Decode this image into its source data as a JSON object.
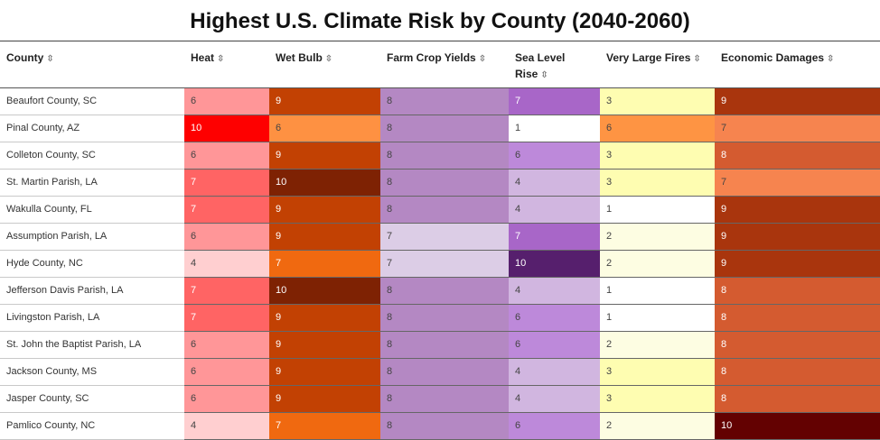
{
  "chart_data": {
    "type": "table",
    "title": "Highest U.S. Climate Risk by County (2040-2060)",
    "columns": [
      {
        "key": "county",
        "label": "County",
        "sort_icon": "sort-arrows-icon"
      },
      {
        "key": "heat",
        "label": "Heat",
        "sort_icon": "sort-arrows-icon"
      },
      {
        "key": "wetbulb",
        "label": "Wet Bulb",
        "sort_icon": "sort-arrows-icon"
      },
      {
        "key": "crops",
        "label": "Farm Crop Yields",
        "sort_icon": "sort-arrows-icon"
      },
      {
        "key": "sealevel",
        "label": "Sea Level Rise",
        "sort_icon": "sort-arrows-icon"
      },
      {
        "key": "fires",
        "label": "Very Large Fires",
        "sort_icon": "sort-arrows-icon"
      },
      {
        "key": "econ",
        "label": "Economic Damages",
        "sort_icon": "sort-arrows-icon"
      }
    ],
    "sort_glyph": "⇳",
    "rows": [
      {
        "county": "Beaufort County, SC",
        "values": [
          6,
          9,
          8,
          7,
          3,
          9
        ]
      },
      {
        "county": "Pinal County, AZ",
        "values": [
          10,
          6,
          8,
          1,
          6,
          7
        ]
      },
      {
        "county": "Colleton County, SC",
        "values": [
          6,
          9,
          8,
          6,
          3,
          8
        ]
      },
      {
        "county": "St. Martin Parish, LA",
        "values": [
          7,
          10,
          8,
          4,
          3,
          7
        ]
      },
      {
        "county": "Wakulla County, FL",
        "values": [
          7,
          9,
          8,
          4,
          1,
          9
        ]
      },
      {
        "county": "Assumption Parish, LA",
        "values": [
          6,
          9,
          7,
          7,
          2,
          9
        ]
      },
      {
        "county": "Hyde County, NC",
        "values": [
          4,
          7,
          7,
          10,
          2,
          9
        ]
      },
      {
        "county": "Jefferson Davis Parish, LA",
        "values": [
          7,
          10,
          8,
          4,
          1,
          8
        ]
      },
      {
        "county": "Livingston Parish, LA",
        "values": [
          7,
          9,
          8,
          6,
          1,
          8
        ]
      },
      {
        "county": "St. John the Baptist Parish, LA",
        "values": [
          6,
          9,
          8,
          6,
          2,
          8
        ]
      },
      {
        "county": "Jackson County, MS",
        "values": [
          6,
          9,
          8,
          4,
          3,
          8
        ]
      },
      {
        "county": "Jasper County, SC",
        "values": [
          6,
          9,
          8,
          4,
          3,
          8
        ]
      },
      {
        "county": "Pamlico County, NC",
        "values": [
          4,
          7,
          8,
          6,
          2,
          10
        ]
      }
    ],
    "color_scales": {
      "heat": {
        "4": "#ffcfd0",
        "6": "#ff9698",
        "7": "#ff6464",
        "10": "#fe0000"
      },
      "wetbulb": {
        "6": "#fe9142",
        "7": "#f06910",
        "9": "#c24103",
        "10": "#7e2203"
      },
      "crops": {
        "7": "#dccde6",
        "8": "#b488c3"
      },
      "sealevel": {
        "1": "#ffffff",
        "4": "#d1b6e0",
        "6": "#bd89da",
        "7": "#a866c8",
        "10": "#561f6d"
      },
      "fires": {
        "1": "#ffffff",
        "2": "#fdfde2",
        "3": "#fefdb1",
        "6": "#fe9443"
      },
      "econ": {
        "7": "#f6844f",
        "8": "#d45b30",
        "9": "#a9350d",
        "10": "#630101"
      }
    },
    "dark_text_threshold_note": ""
  }
}
